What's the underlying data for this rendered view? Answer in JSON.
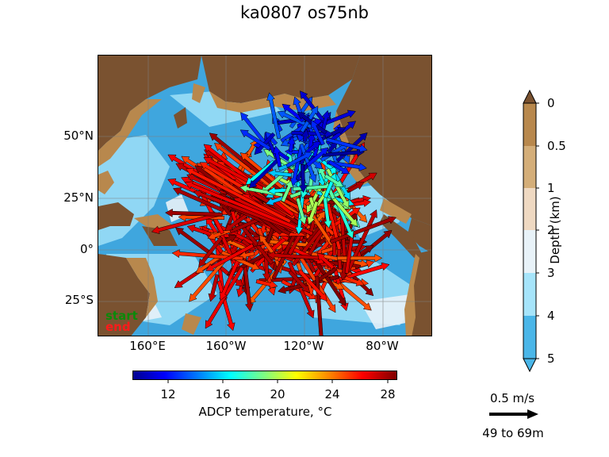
{
  "title": "ka0807 os75nb",
  "map": {
    "lat_labels": [
      "50°N",
      "25°N",
      "0°",
      "25°S"
    ],
    "lon_labels": [
      "160°E",
      "160°W",
      "120°W",
      "80°W"
    ],
    "start_label": "start",
    "end_label": "end",
    "colors": {
      "land": "#7a5230",
      "shelf": "#b8884d",
      "shallow": "#dcc089",
      "mid": "#e8f2f8",
      "ocean3": "#9fe0f8",
      "ocean4": "#4ab6e8",
      "deep": "#3fa6de"
    }
  },
  "temperature_colorbar": {
    "label": "ADCP temperature, °C",
    "ticks": [
      "12",
      "16",
      "20",
      "24",
      "28"
    ],
    "colormap": "jet"
  },
  "depth_colorbar": {
    "label": "Depth (km)",
    "ticks": [
      "0",
      "0.5",
      "1",
      "2",
      "3",
      "4",
      "5"
    ],
    "colors": [
      "#b8884d",
      "#d4ae79",
      "#efd9c2",
      "#e8f2f8",
      "#a6e4fa",
      "#4ab6e8"
    ]
  },
  "scale": {
    "speed_label": "0.5 m/s",
    "depth_range_label": "49 to 69m"
  }
}
